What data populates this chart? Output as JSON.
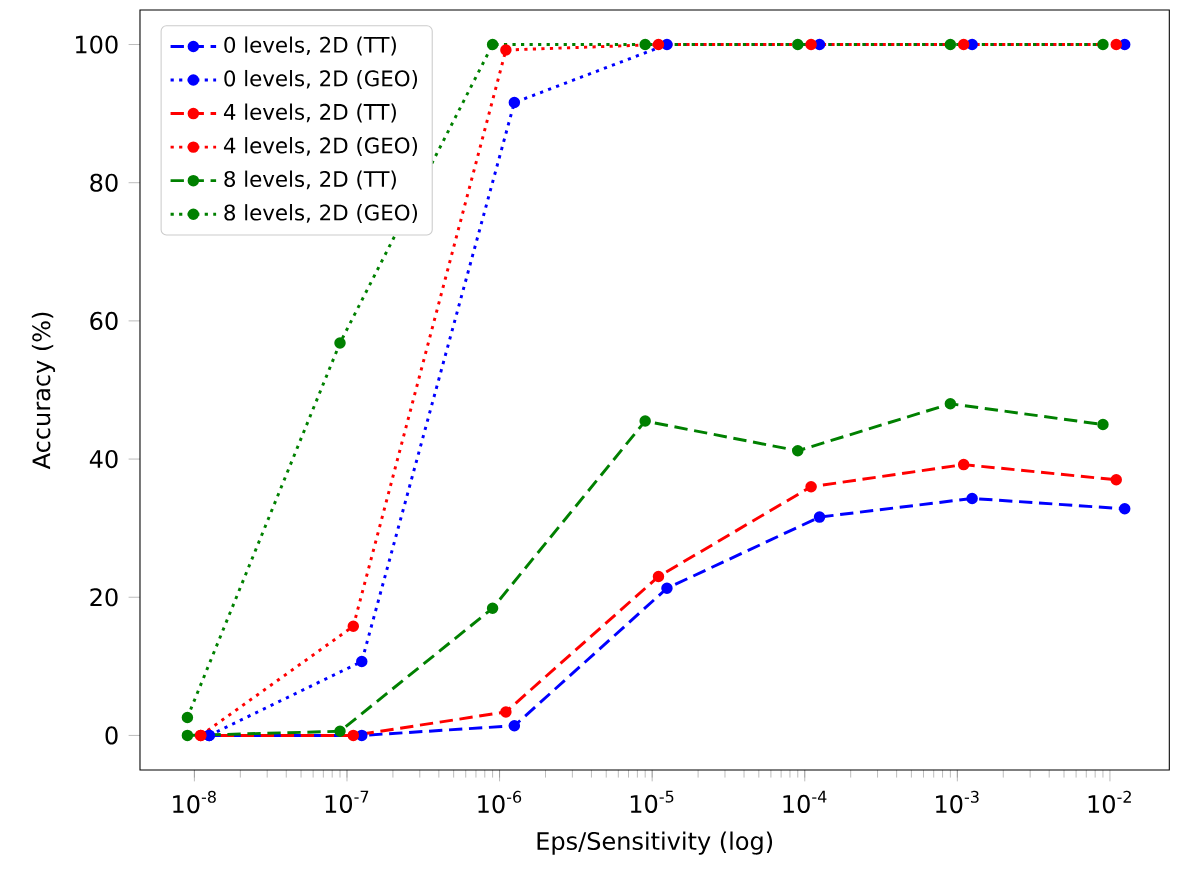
{
  "chart_data": {
    "type": "line",
    "xlabel": "Eps/Sensitivity (log)",
    "ylabel": "Accuracy (%)",
    "log": "x",
    "marker": "circle",
    "legend": "top left",
    "xlim": [
      4.4e-09,
      0.0245
    ],
    "ylim": [
      -5,
      105
    ],
    "xticks": [
      {
        "value": 1e-08,
        "label": "10$^{-8}$"
      },
      {
        "value": 1e-07,
        "label": "10$^{-7}$"
      },
      {
        "value": 1e-06,
        "label": "10$^{-6}$"
      },
      {
        "value": 1e-05,
        "label": "10$^{-5}$"
      },
      {
        "value": 0.0001,
        "label": "10$^{-4}$"
      },
      {
        "value": 0.001,
        "label": "10$^{-3}$"
      },
      {
        "value": 0.01,
        "label": "10$^{-2}$"
      }
    ],
    "yticks": [
      0,
      20,
      40,
      60,
      80,
      100
    ],
    "series": [
      {
        "name": "0 levels, 2D (TT)",
        "color": "#0000ff",
        "line_style": "dashed",
        "x": [
          1.25e-08,
          1.25e-07,
          1.25e-06,
          1.25e-05,
          0.000125,
          0.00125,
          0.0125
        ],
        "values": [
          0,
          0,
          1.4,
          21.3,
          31.6,
          34.3,
          32.8
        ]
      },
      {
        "name": "0 levels, 2D (GEO)",
        "color": "#0000ff",
        "line_style": "dotted",
        "x": [
          1.25e-08,
          1.25e-07,
          1.25e-06,
          1.25e-05,
          0.000125,
          0.00125,
          0.0125
        ],
        "values": [
          0,
          10.7,
          91.6,
          100,
          100,
          100,
          100
        ]
      },
      {
        "name": "4 levels, 2D (TT)",
        "color": "#ff0000",
        "line_style": "dashed",
        "x": [
          1.1e-08,
          1.1e-07,
          1.1e-06,
          1.1e-05,
          0.00011,
          0.0011,
          0.011
        ],
        "values": [
          0,
          0,
          3.4,
          23,
          36,
          39.2,
          37
        ]
      },
      {
        "name": "4 levels, 2D (GEO)",
        "color": "#ff0000",
        "line_style": "dotted",
        "x": [
          1.1e-08,
          1.1e-07,
          1.1e-06,
          1.1e-05,
          0.00011,
          0.0011,
          0.011
        ],
        "values": [
          0,
          15.8,
          99.2,
          100,
          100,
          100,
          100
        ]
      },
      {
        "name": "8 levels, 2D (TT)",
        "color": "#008000",
        "line_style": "dashed",
        "x": [
          9e-09,
          9e-08,
          9e-07,
          9e-06,
          9e-05,
          0.0009,
          0.009
        ],
        "values": [
          0,
          0.6,
          18.4,
          45.5,
          41.2,
          48,
          45
        ]
      },
      {
        "name": "8 levels, 2D (GEO)",
        "color": "#008000",
        "line_style": "dotted",
        "x": [
          9e-09,
          9e-08,
          9e-07,
          9e-06,
          9e-05,
          0.0009,
          0.009
        ],
        "values": [
          2.6,
          56.8,
          100,
          100,
          100,
          100,
          100
        ]
      }
    ]
  }
}
